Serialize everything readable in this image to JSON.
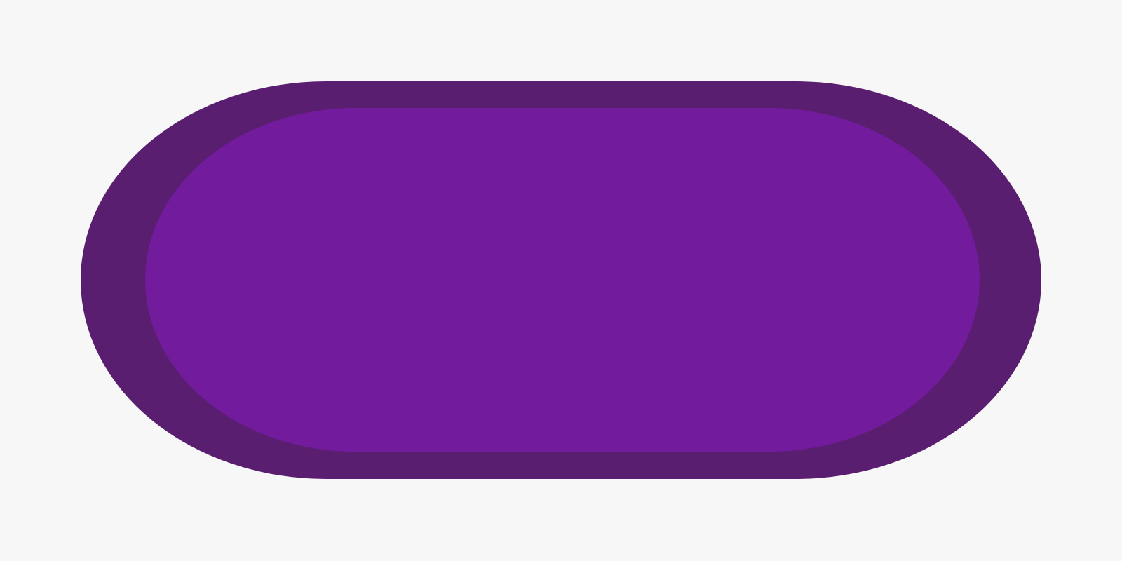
{
  "colors": {
    "background": "#f7f7f7",
    "button_outer": "#5a1e70",
    "button_inner": "#721b9c"
  },
  "button": {
    "label": ""
  }
}
